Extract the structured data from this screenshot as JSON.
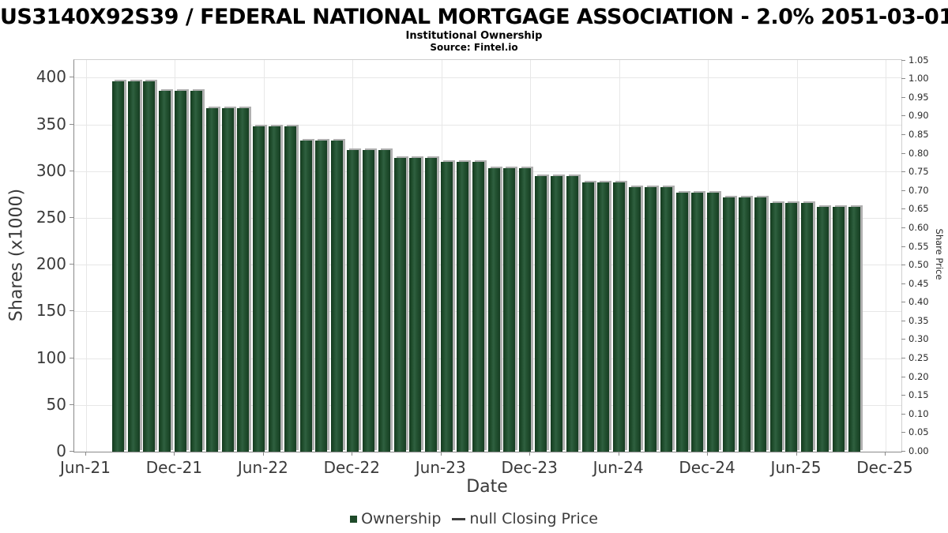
{
  "chart_data": {
    "type": "bar",
    "title": "US3140X92S39 / FEDERAL NATIONAL MORTGAGE ASSOCIATION - 2.0% 2051-03-01",
    "subtitle": "Institutional Ownership",
    "source": "Source: Fintel.io",
    "xlabel": "Date",
    "ylabel_left": "Shares (x1000)",
    "ylabel_right": "Share Price",
    "legend": {
      "bar_series_label": "Ownership",
      "line_series_label": "null Closing Price"
    },
    "x_ticks": [
      "Jun-21",
      "Dec-21",
      "Jun-22",
      "Dec-22",
      "Jun-23",
      "Dec-23",
      "Jun-24",
      "Dec-24",
      "Jun-25",
      "Dec-25"
    ],
    "y_left_ticks": [
      400,
      350,
      300,
      250,
      200,
      150,
      100,
      50,
      0
    ],
    "y_right_ticks": [
      "1.05",
      "1.00",
      "0.95",
      "0.90",
      "0.85",
      "0.80",
      "0.75",
      "0.70",
      "0.65",
      "0.60",
      "0.55",
      "0.50",
      "0.45",
      "0.40",
      "0.35",
      "0.30",
      "0.25",
      "0.20",
      "0.15",
      "0.10",
      "0.05",
      "0.00"
    ],
    "ylim_left": [
      0,
      419
    ],
    "ylim_right": [
      0,
      1.05
    ],
    "grid": true,
    "legend_position": "bottom-center",
    "colors": {
      "bar": "#1e4a29",
      "bar_shadow": "#b0b0b0",
      "line_marker": "#3d3d3d",
      "gridline": "#e7e7e7",
      "axis": "#8a8a8a",
      "tick_label": "#3a3a3a"
    },
    "categories": [
      "Aug-21",
      "Sep-21",
      "Oct-21",
      "Nov-21",
      "Dec-21",
      "Jan-22",
      "Feb-22",
      "Mar-22",
      "Apr-22",
      "May-22",
      "Jun-22",
      "Jul-22",
      "Aug-22",
      "Sep-22",
      "Oct-22",
      "Nov-22",
      "Dec-22",
      "Jan-23",
      "Feb-23",
      "Mar-23",
      "Apr-23",
      "May-23",
      "Jun-23",
      "Jul-23",
      "Aug-23",
      "Sep-23",
      "Oct-23",
      "Nov-23",
      "Dec-23",
      "Jan-24",
      "Feb-24",
      "Mar-24",
      "Apr-24",
      "May-24",
      "Jun-24",
      "Jul-24",
      "Aug-24",
      "Sep-24",
      "Oct-24",
      "Nov-24",
      "Dec-24",
      "Jan-25",
      "Feb-25",
      "Mar-25",
      "Apr-25",
      "May-25",
      "Jun-25",
      "Jul-25"
    ],
    "values": [
      396,
      396,
      396,
      386,
      386,
      386,
      367,
      367,
      367,
      348,
      348,
      348,
      333,
      333,
      333,
      323,
      323,
      323,
      314,
      314,
      314,
      310,
      310,
      310,
      303,
      303,
      303,
      295,
      295,
      295,
      288,
      288,
      288,
      283,
      283,
      283,
      277,
      277,
      277,
      272,
      272,
      272,
      266,
      266,
      266,
      262,
      262,
      262
    ],
    "series": [
      {
        "name": "Ownership",
        "type": "bar",
        "axis": "left"
      },
      {
        "name": "null Closing Price",
        "type": "line",
        "axis": "right",
        "values_present": false
      }
    ]
  }
}
